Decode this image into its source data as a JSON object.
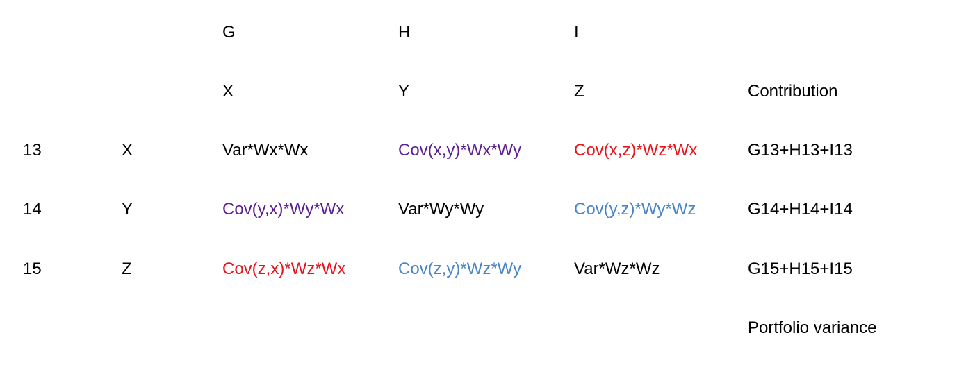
{
  "colors": {
    "black": "#000000",
    "purple": "#5b1f8f",
    "red": "#e8131b",
    "blue": "#4a86c5"
  },
  "column_letters": [
    "G",
    "H",
    "I"
  ],
  "header_row": {
    "x": "X",
    "y": "Y",
    "z": "Z",
    "contribution": "Contribution"
  },
  "rows": [
    {
      "number": "13",
      "label": "X",
      "cells": [
        {
          "text": "Var*Wx*Wx",
          "color": "#000000"
        },
        {
          "text": "Cov(x,y)*Wx*Wy",
          "color": "#5b1f8f"
        },
        {
          "text": "Cov(x,z)*Wz*Wx",
          "color": "#e8131b"
        }
      ],
      "contribution": "G13+H13+I13"
    },
    {
      "number": "14",
      "label": "Y",
      "cells": [
        {
          "text": "Cov(y,x)*Wy*Wx",
          "color": "#5b1f8f"
        },
        {
          "text": "Var*Wy*Wy",
          "color": "#000000"
        },
        {
          "text": "Cov(y,z)*Wy*Wz",
          "color": "#4a86c5"
        }
      ],
      "contribution": "G14+H14+I14"
    },
    {
      "number": "15",
      "label": "Z",
      "cells": [
        {
          "text": "Cov(z,x)*Wz*Wx",
          "color": "#e8131b"
        },
        {
          "text": "Cov(z,y)*Wz*Wy",
          "color": "#4a86c5"
        },
        {
          "text": "Var*Wz*Wz",
          "color": "#000000"
        }
      ],
      "contribution": "G15+H15+I15"
    }
  ],
  "footer": {
    "portfolio_variance": "Portfolio variance"
  }
}
